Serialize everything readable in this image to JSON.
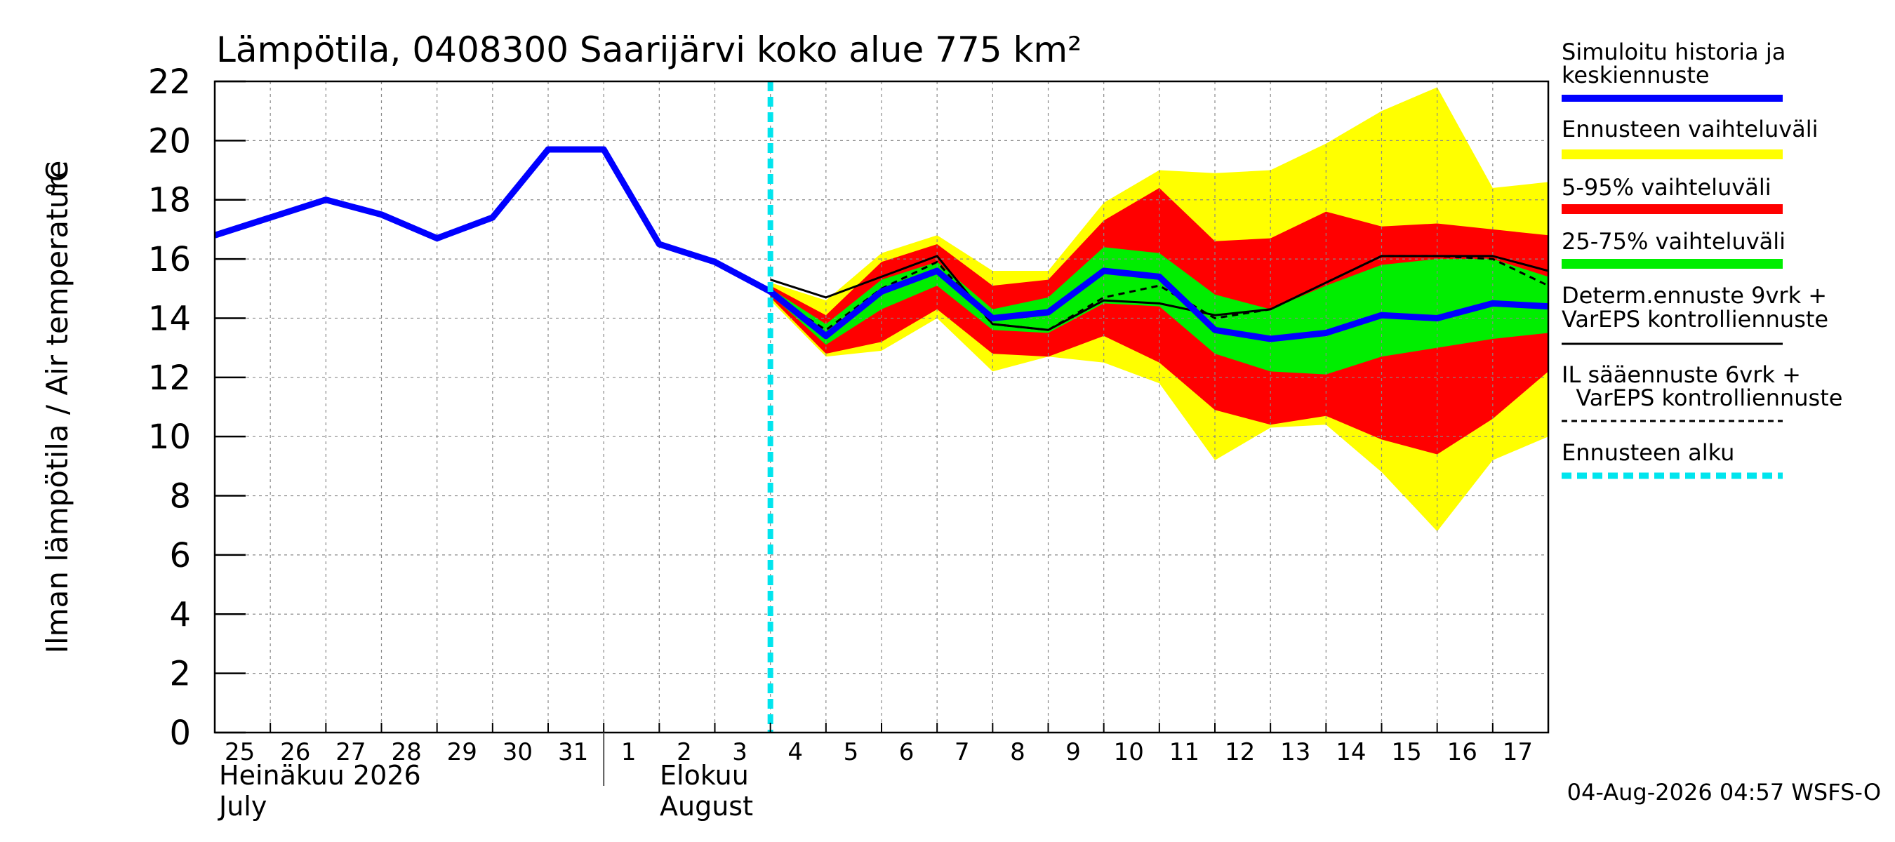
{
  "chart_data": {
    "type": "area",
    "title": "Lämpötila, 0408300 Saarijärvi koko alue 775 km²",
    "ylabel": "Ilman lämpötila / Air temperature",
    "yunit": "°C",
    "ylim": [
      0,
      22
    ],
    "yticks": [
      0,
      2,
      4,
      6,
      8,
      10,
      12,
      14,
      16,
      18,
      20,
      22
    ],
    "xlim": [
      0,
      24
    ],
    "grid": true,
    "xtick_labels": [
      {
        "day": 0,
        "label": "25"
      },
      {
        "day": 1,
        "label": "26"
      },
      {
        "day": 2,
        "label": "27"
      },
      {
        "day": 3,
        "label": "28"
      },
      {
        "day": 4,
        "label": "29"
      },
      {
        "day": 5,
        "label": "30"
      },
      {
        "day": 6,
        "label": "31"
      },
      {
        "day": 7,
        "label": "1"
      },
      {
        "day": 8,
        "label": "2"
      },
      {
        "day": 9,
        "label": "3"
      },
      {
        "day": 10,
        "label": "4"
      },
      {
        "day": 11,
        "label": "5"
      },
      {
        "day": 12,
        "label": "6"
      },
      {
        "day": 13,
        "label": "7"
      },
      {
        "day": 14,
        "label": "8"
      },
      {
        "day": 15,
        "label": "9"
      },
      {
        "day": 16,
        "label": "10"
      },
      {
        "day": 17,
        "label": "11"
      },
      {
        "day": 18,
        "label": "12"
      },
      {
        "day": 19,
        "label": "13"
      },
      {
        "day": 20,
        "label": "14"
      },
      {
        "day": 21,
        "label": "15"
      },
      {
        "day": 22,
        "label": "16"
      },
      {
        "day": 23,
        "label": "17"
      }
    ],
    "month_labels": {
      "july_fi": "Heinäkuu  2026",
      "july_en": "July",
      "august_fi": "Elokuu",
      "august_en": "August"
    },
    "month_boundary_day": 7,
    "forecast_start_day": 10,
    "history": {
      "x": [
        0,
        1,
        2,
        3,
        4,
        5,
        6,
        7,
        8,
        9,
        10
      ],
      "y": [
        16.8,
        17.4,
        18.0,
        17.5,
        16.7,
        17.4,
        19.7,
        19.7,
        16.5,
        15.9,
        14.9
      ]
    },
    "forecast_x": [
      10,
      11,
      12,
      13,
      14,
      15,
      16,
      17,
      18,
      19,
      20,
      21,
      22,
      23,
      24
    ],
    "series": [
      {
        "name": "Ennusteen vaihteluväli",
        "color": "#ffff00",
        "upper": [
          15.2,
          14.6,
          16.2,
          16.8,
          15.6,
          15.6,
          17.9,
          19.0,
          18.9,
          19.0,
          19.9,
          21.0,
          21.8,
          18.4,
          18.6
        ],
        "lower": [
          14.6,
          12.7,
          12.9,
          14.0,
          12.2,
          12.7,
          12.5,
          11.8,
          9.2,
          10.3,
          10.4,
          8.8,
          6.8,
          9.2,
          10.0
        ]
      },
      {
        "name": "5-95% vaihteluväli",
        "color": "#ff0000",
        "upper": [
          15.1,
          14.1,
          15.9,
          16.5,
          15.1,
          15.3,
          17.3,
          18.4,
          16.6,
          16.7,
          17.6,
          17.1,
          17.2,
          17.0,
          16.8
        ],
        "lower": [
          14.7,
          12.8,
          13.2,
          14.3,
          12.8,
          12.7,
          13.4,
          12.5,
          10.9,
          10.4,
          10.7,
          9.9,
          9.4,
          10.6,
          12.2
        ]
      },
      {
        "name": "25-75% vaihteluväli",
        "color": "#00ee00",
        "upper": [
          15.0,
          13.8,
          15.3,
          15.9,
          14.3,
          14.7,
          16.4,
          16.2,
          14.8,
          14.3,
          15.1,
          15.8,
          16.0,
          16.0,
          15.4
        ],
        "lower": [
          14.8,
          13.1,
          14.3,
          15.1,
          13.6,
          13.5,
          14.5,
          14.4,
          12.8,
          12.2,
          12.1,
          12.7,
          13.0,
          13.3,
          13.5
        ]
      },
      {
        "name": "Simuloitu historia ja keskiennuste",
        "color": "#0000ff",
        "y": [
          14.9,
          13.4,
          14.9,
          15.6,
          14.0,
          14.2,
          15.6,
          15.4,
          13.6,
          13.3,
          13.5,
          14.1,
          14.0,
          14.5,
          14.4
        ]
      },
      {
        "name": "Determ.ennuste 9vrk + VarEPS kontrolliennuste",
        "color": "#000000",
        "y": [
          15.3,
          14.7,
          15.4,
          16.1,
          13.8,
          13.6,
          14.6,
          14.5,
          14.1,
          14.3,
          15.2,
          16.1,
          16.1,
          16.1,
          15.6
        ]
      },
      {
        "name": "IL sääennuste 6vrk + VarEPS kontrolliennuste",
        "color": "#000000",
        "y": [
          14.8,
          13.6,
          15.0,
          15.9,
          13.8,
          13.6,
          14.7,
          15.1,
          14.0,
          14.3,
          15.2,
          16.1,
          16.1,
          16.0,
          15.1
        ]
      }
    ]
  },
  "legend": {
    "hist1": "Simuloitu historia ja",
    "hist2": "keskiennuste",
    "range": "Ennusteen vaihteluväli",
    "p595": "5-95% vaihteluväli",
    "p2575": "25-75% vaihteluväli",
    "det1": "Determ.ennuste 9vrk +",
    "det2": "VarEPS kontrolliennuste",
    "il1": "IL sääennuste 6vrk  +",
    "il2": "  VarEPS kontrolliennuste",
    "start": "Ennusteen alku",
    "colors": {
      "history": "#0000ff",
      "range": "#ffff00",
      "p595": "#ff0000",
      "p2575": "#00ee00",
      "start": "#00e5ee",
      "det": "#000000"
    }
  },
  "footer": {
    "timestamp": "04-Aug-2026 04:57 WSFS-O"
  }
}
